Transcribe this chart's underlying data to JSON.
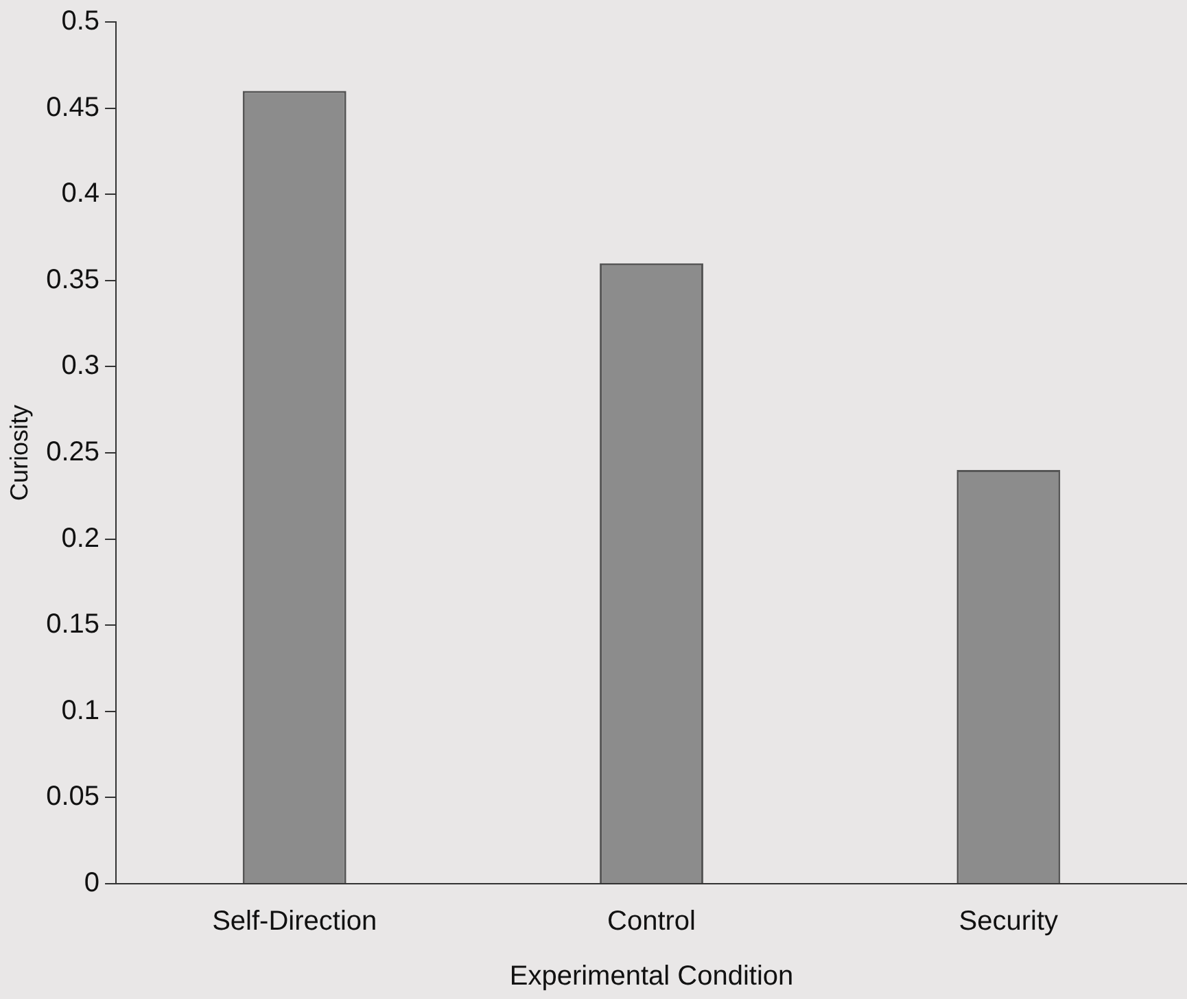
{
  "chart_data": {
    "type": "bar",
    "xlabel": "Experimental Condition",
    "ylabel": "Curiosity",
    "categories": [
      "Self-Direction",
      "Control",
      "Security"
    ],
    "values": [
      0.46,
      0.36,
      0.24
    ],
    "color": "#8c8c8c",
    "ylim": [
      0,
      0.5
    ],
    "yticks": [
      0,
      0.05,
      0.1,
      0.15,
      0.2,
      0.25,
      0.3,
      0.35,
      0.4,
      0.45,
      0.5
    ],
    "grid": false,
    "legend": false
  }
}
